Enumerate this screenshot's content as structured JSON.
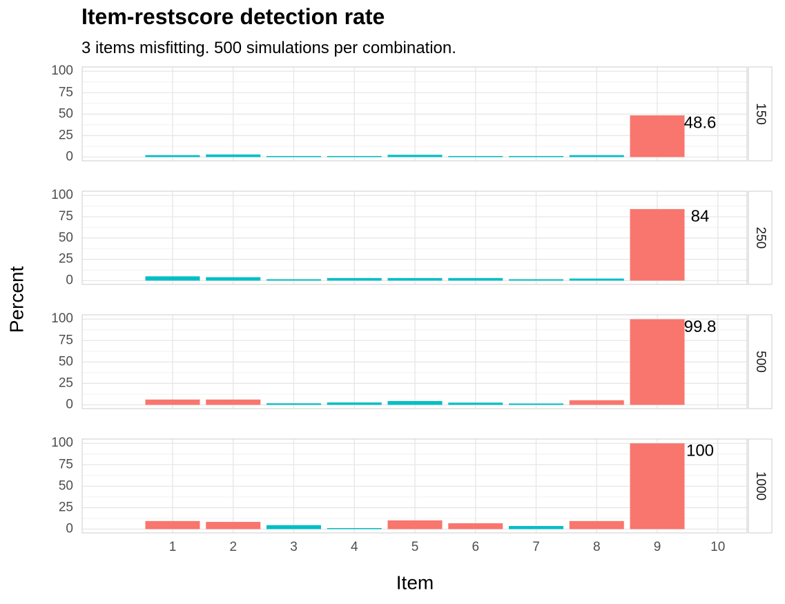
{
  "chart_data": {
    "type": "bar",
    "title": "Item-restscore detection rate",
    "subtitle": "3 items misfitting. 500 simulations per combination.",
    "xlabel": "Item",
    "ylabel": "Percent",
    "categories": [
      "1",
      "2",
      "3",
      "4",
      "5",
      "6",
      "7",
      "8",
      "9",
      "10"
    ],
    "ylim": [
      0,
      105
    ],
    "yticks": [
      "0",
      "25",
      "50",
      "75",
      "100"
    ],
    "grid": true,
    "colors": {
      "red": "#F8766D",
      "teal": "#00BFC4"
    },
    "panels": [
      {
        "strip": "150",
        "values": [
          2.2,
          3.0,
          0.6,
          0.4,
          2.6,
          0.4,
          0.4,
          2.2,
          48.6,
          null
        ],
        "colors": [
          "teal",
          "teal",
          "teal",
          "teal",
          "teal",
          "teal",
          "teal",
          "teal",
          "red",
          null
        ],
        "label_item": "9",
        "label_text": "48.6"
      },
      {
        "strip": "250",
        "values": [
          5.0,
          4.0,
          1.6,
          3.0,
          3.0,
          3.0,
          1.6,
          2.4,
          84,
          null
        ],
        "colors": [
          "teal",
          "teal",
          "teal",
          "teal",
          "teal",
          "teal",
          "teal",
          "teal",
          "red",
          null
        ],
        "label_item": "9",
        "label_text": "84"
      },
      {
        "strip": "500",
        "values": [
          6.2,
          6.2,
          1.8,
          2.8,
          4.4,
          2.6,
          1.6,
          5.4,
          99.8,
          null
        ],
        "colors": [
          "red",
          "red",
          "teal",
          "teal",
          "teal",
          "teal",
          "teal",
          "red",
          "red",
          null
        ],
        "label_item": "9",
        "label_text": "99.8"
      },
      {
        "strip": "1000",
        "values": [
          9.4,
          8.4,
          4.6,
          1.0,
          10.2,
          6.8,
          3.6,
          9.4,
          100,
          null
        ],
        "colors": [
          "red",
          "red",
          "teal",
          "teal",
          "red",
          "red",
          "teal",
          "red",
          "red",
          null
        ],
        "label_item": "9",
        "label_text": "100"
      }
    ]
  }
}
